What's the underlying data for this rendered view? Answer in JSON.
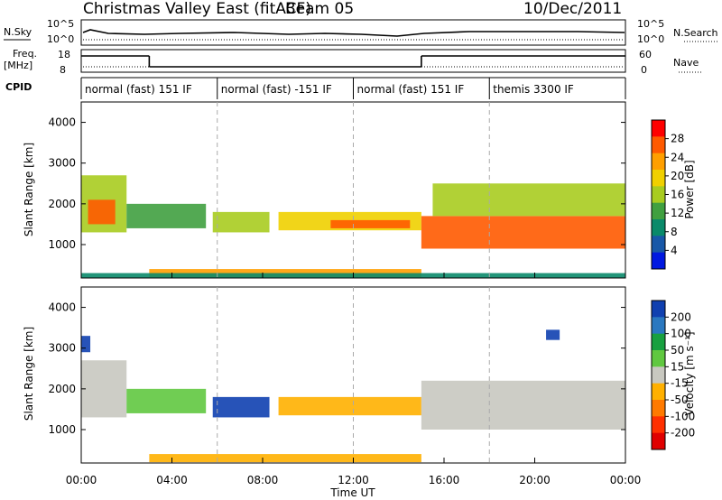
{
  "header": {
    "station": "Christmas Valley East (fitACF)",
    "beam": "Beam 05",
    "date": "10/Dec/2011"
  },
  "strips": {
    "nsky_label": "N.Sky",
    "nsky_ticks": [
      "10^5",
      "10^0"
    ],
    "nsearch_label": "N.Search",
    "nsearch_ticks": [
      "10^5",
      "10^0"
    ],
    "freq_label": "Freq.",
    "freq_unit": "[MHz]",
    "freq_ticks": [
      "18",
      "8"
    ],
    "nave_label": "Nave",
    "nave_ticks": [
      "60",
      "0"
    ],
    "cpid_label": "CPID",
    "cpid_segments": [
      {
        "label": "normal (fast) 151 IF",
        "start_h": 0,
        "end_h": 6
      },
      {
        "label": "normal (fast) -151 IF",
        "start_h": 6,
        "end_h": 12
      },
      {
        "label": "normal (fast) 151 IF",
        "start_h": 12,
        "end_h": 18
      },
      {
        "label": "themis 3300 IF",
        "start_h": 18,
        "end_h": 24
      }
    ],
    "freq_steps": [
      {
        "start_h": 0,
        "end_h": 3.0,
        "level": "high"
      },
      {
        "start_h": 3.0,
        "end_h": 15.0,
        "level": "low"
      },
      {
        "start_h": 15.0,
        "end_h": 24,
        "level": "high"
      }
    ]
  },
  "panels": {
    "ylabel": "Slant Range [km]",
    "yticks": [
      "4000",
      "3000",
      "2000",
      "1000"
    ],
    "xticks": [
      "00:00",
      "04:00",
      "08:00",
      "12:00",
      "16:00",
      "20:00",
      "00:00"
    ],
    "xlabel": "Time UT"
  },
  "power_colorbar": {
    "label": "Power [dB]",
    "ticks": [
      "28",
      "24",
      "20",
      "16",
      "12",
      "8",
      "4"
    ],
    "colors": [
      "#ff0000",
      "#ff5a00",
      "#ff9f00",
      "#f0d000",
      "#a8cc20",
      "#40a040",
      "#0a8a6a",
      "#1858a8",
      "#0018e0"
    ]
  },
  "velocity_colorbar": {
    "label": "Velocity [m s⁻¹]",
    "ticks": [
      "200",
      "100",
      "50",
      "15",
      "-15",
      "-50",
      "-100",
      "-200"
    ],
    "colors": [
      "#1040b0",
      "#2a78c0",
      "#18a040",
      "#60c840",
      "#c8c8c0",
      "#ffb000",
      "#ff7a00",
      "#ff3000",
      "#e00000"
    ]
  },
  "chart_data": [
    {
      "type": "heatmap",
      "title": "Power",
      "xlabel": "Time UT",
      "ylabel": "Slant Range [km]",
      "xlim": [
        0,
        24
      ],
      "ylim": [
        180,
        4500
      ],
      "color_scale_label": "Power [dB]",
      "color_scale_range": [
        0,
        30
      ],
      "bands": [
        {
          "t0": 0.0,
          "t1": 2.0,
          "r0": 1300,
          "r1": 2700,
          "value": 14
        },
        {
          "t0": 0.3,
          "t1": 1.5,
          "r0": 1500,
          "r1": 2100,
          "value": 24
        },
        {
          "t0": 2.0,
          "t1": 5.5,
          "r0": 1400,
          "r1": 2000,
          "value": 12
        },
        {
          "t0": 5.8,
          "t1": 8.3,
          "r0": 1300,
          "r1": 1800,
          "value": 16
        },
        {
          "t0": 8.7,
          "t1": 15.0,
          "r0": 1350,
          "r1": 1800,
          "value": 18
        },
        {
          "t0": 11.0,
          "t1": 14.5,
          "r0": 1400,
          "r1": 1600,
          "value": 26
        },
        {
          "t0": 15.0,
          "t1": 24.0,
          "r0": 900,
          "r1": 1700,
          "value": 26
        },
        {
          "t0": 15.5,
          "t1": 24.0,
          "r0": 1700,
          "r1": 2500,
          "value": 14
        },
        {
          "t0": 3.0,
          "t1": 15.0,
          "r0": 200,
          "r1": 400,
          "value": 20
        },
        {
          "t0": 0.0,
          "t1": 24.0,
          "r0": 180,
          "r1": 300,
          "value": 8
        }
      ]
    },
    {
      "type": "heatmap",
      "title": "Velocity",
      "xlabel": "Time UT",
      "ylabel": "Slant Range [km]",
      "xlim": [
        0,
        24
      ],
      "ylim": [
        180,
        4500
      ],
      "color_scale_label": "Velocity [m s⁻¹]",
      "color_scale_range": [
        -200,
        200
      ],
      "bands": [
        {
          "t0": 0.0,
          "t1": 2.0,
          "r0": 1300,
          "r1": 2700,
          "value": 0
        },
        {
          "t0": 2.0,
          "t1": 5.5,
          "r0": 1400,
          "r1": 2000,
          "value": 60
        },
        {
          "t0": 5.8,
          "t1": 8.3,
          "r0": 1300,
          "r1": 1800,
          "value": 180
        },
        {
          "t0": 8.7,
          "t1": 15.0,
          "r0": 1350,
          "r1": 1800,
          "value": -60
        },
        {
          "t0": 15.0,
          "t1": 24.0,
          "r0": 1000,
          "r1": 2200,
          "value": 0
        },
        {
          "t0": 0.0,
          "t1": 0.4,
          "r0": 2900,
          "r1": 3300,
          "value": 200
        },
        {
          "t0": 20.5,
          "t1": 21.1,
          "r0": 3200,
          "r1": 3450,
          "value": 200
        },
        {
          "t0": 3.0,
          "t1": 15.0,
          "r0": 200,
          "r1": 400,
          "value": -40
        }
      ]
    }
  ]
}
